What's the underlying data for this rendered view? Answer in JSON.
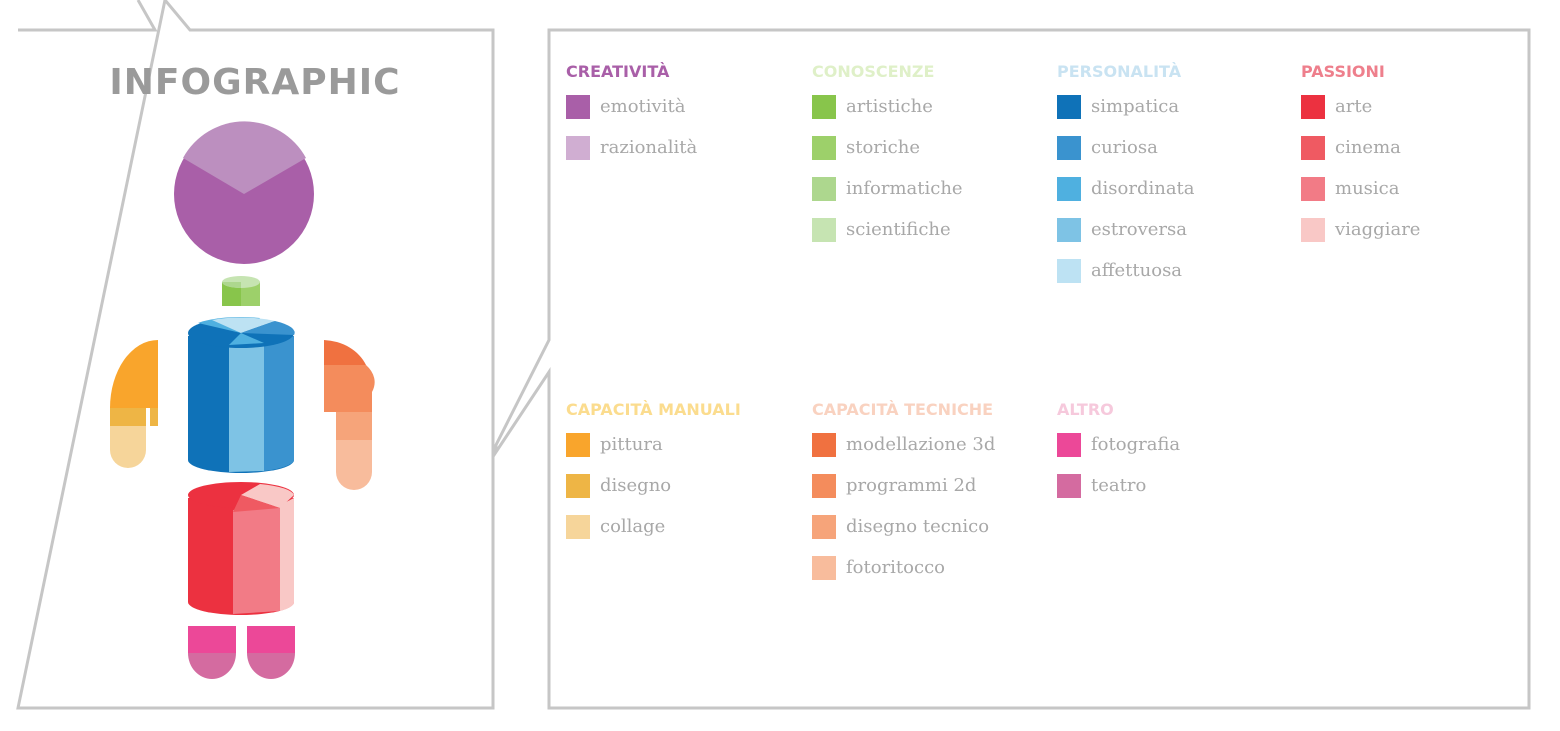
{
  "title": "INFOGRAPHIC",
  "categories": [
    {
      "key": "creativita",
      "title": "CREATIVITÀ",
      "color": "#a95fa8",
      "items": [
        {
          "label": "emotività",
          "color": "#a95fa8"
        },
        {
          "label": "razionalità",
          "color": "#d0aed2"
        }
      ]
    },
    {
      "key": "conoscenze",
      "title": "CONOSCENZE",
      "color": "#dff0c8",
      "items": [
        {
          "label": "artistiche",
          "color": "#88c54b"
        },
        {
          "label": "storiche",
          "color": "#9dd06a"
        },
        {
          "label": "informatiche",
          "color": "#add78e"
        },
        {
          "label": "scientifiche",
          "color": "#c6e4b2"
        }
      ]
    },
    {
      "key": "personalita",
      "title": "PERSONALITÀ",
      "color": "#c9e3f2",
      "items": [
        {
          "label": "simpatica",
          "color": "#0f72b8"
        },
        {
          "label": "curiosa",
          "color": "#3a93cf"
        },
        {
          "label": "disordinata",
          "color": "#4fb0e0"
        },
        {
          "label": "estroversa",
          "color": "#7ec3e5"
        },
        {
          "label": "affettuosa",
          "color": "#bde2f3"
        }
      ]
    },
    {
      "key": "passioni",
      "title": "PASSIONI",
      "color": "#ee7f8c",
      "items": [
        {
          "label": "arte",
          "color": "#ec3140"
        },
        {
          "label": "cinema",
          "color": "#ef5a62"
        },
        {
          "label": "musica",
          "color": "#f27b86"
        },
        {
          "label": "viaggiare",
          "color": "#f9c8c6"
        }
      ]
    },
    {
      "key": "manuali",
      "title": "CAPACITÀ MANUALI",
      "color": "#fbdc8e",
      "items": [
        {
          "label": "pittura",
          "color": "#f9a52c"
        },
        {
          "label": "disegno",
          "color": "#eeb545"
        },
        {
          "label": "collage",
          "color": "#f6d59a"
        }
      ]
    },
    {
      "key": "tecniche",
      "title": "CAPACITÀ TECNICHE",
      "color": "#f9d2c0",
      "items": [
        {
          "label": "modellazione 3d",
          "color": "#f07140"
        },
        {
          "label": "programmi 2d",
          "color": "#f48c5c"
        },
        {
          "label": "disegno tecnico",
          "color": "#f6a47a"
        },
        {
          "label": "fotoritocco",
          "color": "#f8bc9c"
        }
      ]
    },
    {
      "key": "altro",
      "title": "ALTRO",
      "color": "#f6c9dc",
      "items": [
        {
          "label": "fotografia",
          "color": "#ec4898"
        },
        {
          "label": "teatro",
          "color": "#d46ba0"
        }
      ]
    }
  ]
}
